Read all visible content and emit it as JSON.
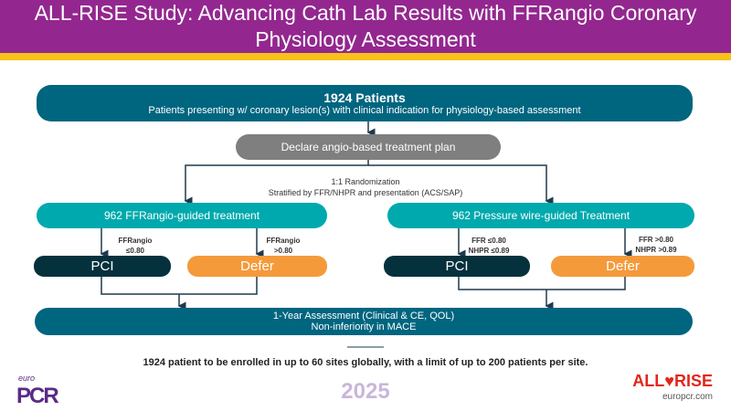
{
  "title": "ALL-RISE Study: Advancing Cath Lab Results with FFRangio Coronary Physiology Assessment",
  "patients": {
    "heading": "1924 Patients",
    "sub": "Patients presenting w/ coronary lesion(s) with clinical indication for physiology-based assessment"
  },
  "declare": "Declare angio-based treatment plan",
  "randomization": {
    "line1": "1:1 Randomization",
    "line2": "Stratified by FFR/NHPR and presentation (ACS/SAP)"
  },
  "left": {
    "arm": "962 FFRangio-guided treatment",
    "pci_cond": [
      "FFRangio",
      "≤0.80"
    ],
    "defer_cond": [
      "FFRangio",
      ">0.80"
    ],
    "pci": "PCI",
    "defer": "Defer"
  },
  "right": {
    "arm": "962 Pressure wire-guided Treatment",
    "pci_cond": [
      "FFR ≤0.80",
      "NHPR ≤0.89"
    ],
    "defer_cond": [
      "FFR >0.80",
      "NHPR >0.89"
    ],
    "pci": "PCI",
    "defer": "Defer"
  },
  "assessment": {
    "line1": "1-Year Assessment (Clinical & CE, QOL)",
    "line2": "Non-inferiority in MACE"
  },
  "footnote": "1924 patient to be enrolled in up to 60 sites globally, with a limit of up to 200 patients per site.",
  "footer": {
    "logo_left_small": "euro",
    "logo_left": "PCR",
    "year": "2025",
    "logo_right": "ALL♥RISE",
    "url": "europcr.com"
  }
}
